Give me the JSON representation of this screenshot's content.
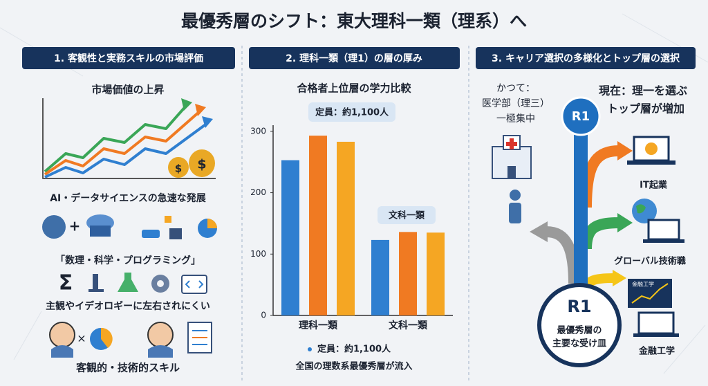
{
  "title": "最優秀層のシフト：東大理科一類（理系）へ",
  "panels": [
    {
      "header": "1. 客観性と実務スキルの市場評価",
      "texts": [
        "市場価値の上昇",
        "AI・データサイエンスの急速な発展",
        "「数理・科学・プログラミング」",
        "主観やイデオロギーに左右されにくい",
        "客観的・技術的スキル"
      ],
      "symbols": [
        "$",
        "+",
        "Σ",
        "×"
      ]
    },
    {
      "header": "2. 理科一類（理1）の層の厚み"
    },
    {
      "header": "3. キャリア選択の多様化とトップ層の選択",
      "past": [
        "かつて：",
        "医学部（理三）",
        "一極集中"
      ],
      "now": [
        "現在：理一を選ぶ",
        "トップ層が増加"
      ],
      "badge": "R1",
      "careers": [
        "IT起業",
        "グローバル技術職",
        "金融工学"
      ],
      "screen_label": "金融工学",
      "hub": {
        "label": "R1",
        "text": [
          "最優秀層の",
          "主要な受け皿"
        ]
      }
    }
  ],
  "chart_data": {
    "type": "bar",
    "title": "合格者上位層の学力比較",
    "categories": [
      "理科一類",
      "文科一類"
    ],
    "series": [
      {
        "color": "#2f7fd0",
        "values": [
          253,
          123
        ]
      },
      {
        "color": "#f07a22",
        "values": [
          293,
          136
        ]
      },
      {
        "color": "#f5a623",
        "values": [
          283,
          135
        ]
      }
    ],
    "ylim": [
      0,
      310
    ],
    "yticks": [
      0,
      100,
      200,
      300
    ],
    "annotations": [
      "定員：約1,100人",
      "文科一類",
      "定員：約1,100人",
      "全国の理数系最優秀層が流入"
    ]
  }
}
